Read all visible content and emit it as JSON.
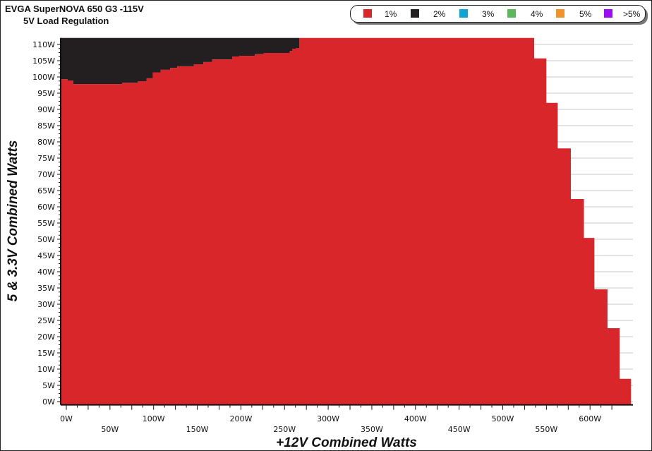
{
  "header": {
    "title": "EVGA SuperNOVA 650 G3 -115V",
    "subtitle": "5V Load Regulation"
  },
  "chart_data": {
    "type": "area",
    "title": "EVGA SuperNOVA 650 G3 -115V",
    "subtitle": "5V Load Regulation",
    "xlabel": "+12V Combined Watts",
    "ylabel": "5 & 3.3V Combined Watts",
    "xlim": [
      -6.5,
      647
    ],
    "ylim": [
      -1,
      112
    ],
    "grid": "horizontal",
    "legend_position": "top-right",
    "x_ticks": [
      "0W",
      "50W",
      "100W",
      "150W",
      "200W",
      "250W",
      "300W",
      "350W",
      "400W",
      "450W",
      "500W",
      "550W",
      "600W"
    ],
    "x_tick_values": [
      0,
      50,
      100,
      150,
      200,
      250,
      300,
      350,
      400,
      450,
      500,
      550,
      600
    ],
    "y_ticks": [
      "0W",
      "5W",
      "10W",
      "15W",
      "20W",
      "25W",
      "30W",
      "35W",
      "40W",
      "45W",
      "50W",
      "55W",
      "60W",
      "65W",
      "70W",
      "75W",
      "80W",
      "85W",
      "90W",
      "95W",
      "100W",
      "105W",
      "110W"
    ],
    "y_tick_values": [
      0,
      5,
      10,
      15,
      20,
      25,
      30,
      35,
      40,
      45,
      50,
      55,
      60,
      65,
      70,
      75,
      80,
      85,
      90,
      95,
      100,
      105,
      110
    ],
    "legend": [
      {
        "label": "1%",
        "color": "#d9262a"
      },
      {
        "label": "2%",
        "color": "#231f20"
      },
      {
        "label": "3%",
        "color": "#0ea5d6"
      },
      {
        "label": "4%",
        "color": "#5cb85c"
      },
      {
        "label": "5%",
        "color": "#f0932b"
      },
      {
        "label": ">5%",
        "color": "#9b0eef"
      }
    ],
    "series": [
      {
        "name": "1%",
        "color": "#d9262a",
        "x_end": 647,
        "steps": [
          [
            -6.5,
            99.3
          ],
          [
            1.6,
            98.9
          ],
          [
            8,
            97.8
          ],
          [
            64,
            98.2
          ],
          [
            82,
            98.7
          ],
          [
            92,
            99.6
          ],
          [
            99,
            101.4
          ],
          [
            108,
            102.2
          ],
          [
            119,
            102.8
          ],
          [
            127,
            103.3
          ],
          [
            146,
            103.9
          ],
          [
            157,
            104.6
          ],
          [
            167,
            105.4
          ],
          [
            190,
            106.3
          ],
          [
            198,
            106.5
          ],
          [
            216,
            107
          ],
          [
            226,
            107.4
          ],
          [
            256,
            108
          ],
          [
            259,
            108.7
          ],
          [
            263,
            108.9
          ],
          [
            267,
            112
          ],
          [
            536,
            105.7
          ],
          [
            550,
            92
          ],
          [
            563,
            78
          ],
          [
            578,
            62.4
          ],
          [
            593,
            50.4
          ],
          [
            605,
            34.6
          ],
          [
            620,
            22.6
          ],
          [
            634,
            7.0
          ]
        ]
      },
      {
        "name": "2%",
        "color": "#231f20",
        "upper": 112,
        "x_end": 267,
        "lower_steps": [
          [
            -6.5,
            99.3
          ],
          [
            1.6,
            98.9
          ],
          [
            8,
            97.8
          ],
          [
            64,
            98.2
          ],
          [
            82,
            98.7
          ],
          [
            92,
            99.6
          ],
          [
            99,
            101.4
          ],
          [
            108,
            102.2
          ],
          [
            119,
            102.8
          ],
          [
            127,
            103.3
          ],
          [
            146,
            103.9
          ],
          [
            157,
            104.6
          ],
          [
            167,
            105.4
          ],
          [
            190,
            106.3
          ],
          [
            198,
            106.5
          ],
          [
            216,
            107
          ],
          [
            226,
            107.4
          ],
          [
            256,
            108
          ],
          [
            259,
            108.7
          ],
          [
            263,
            108.9
          ]
        ]
      }
    ]
  }
}
